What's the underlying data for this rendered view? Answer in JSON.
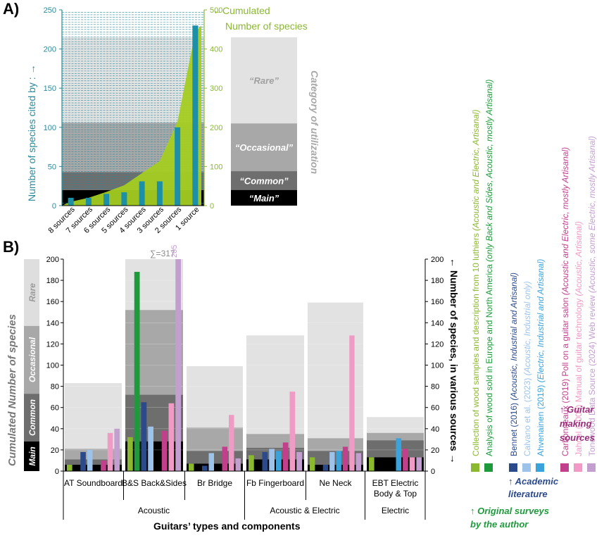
{
  "colors": {
    "teal": "#2a8a9a",
    "tealBar": "#1d8fa6",
    "green": "#8ab82e",
    "greenArea": "#a4cc22",
    "darkGreen": "#1e9a3c",
    "navy": "#2b4a8c",
    "lightBlue": "#9ec3ea",
    "blue": "#3aa3dc",
    "magenta": "#c23f8c",
    "pink": "#f09ac6",
    "lavender": "#c39fd0",
    "purple": "#9a2e7a",
    "rare": "#e2e2e2",
    "occasional": "#a8a8a8",
    "common": "#6e6e6e",
    "main": "#000000"
  },
  "panelA": {
    "label": "A)",
    "leftAxisTitle": "Number of species cited by : →",
    "leftAxisArrow": "←",
    "rightAxisTitleLine1": "←Cumulated",
    "rightAxisTitleLine2": "Number of species",
    "categoryTitle": "Category of utilization",
    "categories": [
      "“Rare”",
      "“Occasional”",
      "“Common”",
      "“Main”"
    ]
  },
  "panelB": {
    "label": "B)",
    "leftAxisTitle": "Cumulated Number of species",
    "rightAxisTitle": "← Number of species, in various sources →",
    "xAxisTitle": "Guitars’ types and components",
    "sumLabel": "∑=317",
    "overflowLabel": "205",
    "categoryLabels": [
      "Rare",
      "Occasional",
      "Common",
      "Main"
    ],
    "componentLabels": [
      "AT Soundboard",
      "B&S Back&Sides",
      "Br Bridge",
      "Fb Fingerboard",
      "Ne Neck",
      "EBT Electric\nBody & Top"
    ],
    "groupLabels": [
      "Acoustic",
      "Acoustic & Electric",
      "Electric"
    ]
  },
  "legend": {
    "original": {
      "heading": "↑ Original surveys by the author",
      "items": [
        {
          "main": "Collection of wood samples and description from 10 luthiers ",
          "italic": "(Acoustic and Electric, Artisanal)",
          "color": "#8ab82e"
        },
        {
          "main": "Analysis of wood sold in Europe and North America ",
          "italic": "(only Back and Sides, Acoustic, mostly Artisanal)",
          "color": "#1e9a3c"
        }
      ]
    },
    "academic": {
      "heading": "↑ Academic literature",
      "items": [
        {
          "main": "Bennet (2016) ",
          "italic": "(Acoustic, Industrial and Artisanal)",
          "color": "#2b4a8c"
        },
        {
          "main": "Calvano et al. (2023) ",
          "italic": "(Acoustic, Industrial only)",
          "color": "#9ec3ea"
        },
        {
          "main": "Ahvenainen (2019) ",
          "italic": "(Electric, Industrial and Artisanal)",
          "color": "#3aa3dc"
        }
      ]
    },
    "guitar": {
      "heading": "↑ Guitar making sources",
      "items": [
        {
          "main": "Carbonneaux (2019) Poll on a guitar salon ",
          "italic": "(Acoustic and Electric, mostly Artisanal)",
          "color": "#c23f8c"
        },
        {
          "main": "Jahnel (2000) Manual of guitar technology ",
          "italic": "(Acoustic, Artisanal)",
          "color": "#f09ac6"
        },
        {
          "main": "Tonewood Data Source (2024) Web review ",
          "italic": "(Acoustic, some Electric, mostly Artisanal)",
          "color": "#c39fd0"
        }
      ]
    }
  },
  "chart_data": [
    {
      "type": "bar",
      "id": "A",
      "categories": [
        "8 sources",
        "7 sources",
        "6 sources",
        "5 sources",
        "4 sources",
        "3 sources",
        "2 sources",
        "1 source"
      ],
      "values": [
        10,
        10,
        15,
        17,
        31,
        31,
        100,
        230
      ],
      "ylim": [
        0,
        250
      ],
      "yticks": [
        0,
        50,
        100,
        150,
        200,
        250
      ],
      "y2ticks": [
        0,
        100,
        200,
        300,
        400,
        500
      ],
      "cumulative": [
        10,
        20,
        35,
        52,
        83,
        114,
        214,
        444
      ],
      "y2lim": [
        0,
        500
      ],
      "categoryBands": [
        {
          "name": "Main",
          "from": 0,
          "to": 20
        },
        {
          "name": "Common",
          "from": 20,
          "to": 43
        },
        {
          "name": "Occasional",
          "from": 43,
          "to": 106
        },
        {
          "name": "Rare",
          "from": 106,
          "to": 215
        }
      ]
    },
    {
      "type": "bar",
      "id": "B",
      "categories": [
        "AT",
        "B&S",
        "Br",
        "Fb",
        "Ne",
        "EBT"
      ],
      "ylim": [
        0,
        200
      ],
      "yticks": [
        0,
        20,
        40,
        60,
        80,
        100,
        120,
        140,
        160,
        180,
        200
      ],
      "stackedTotals": [
        {
          "main": 6,
          "common": 11,
          "occasional": 21,
          "rare": 83
        },
        {
          "main": 28,
          "common": 72,
          "occasional": 152,
          "rare": 200
        },
        {
          "main": 7,
          "common": 19,
          "occasional": 41,
          "rare": 99
        },
        {
          "main": 11,
          "common": 22,
          "occasional": 35,
          "rare": 128
        },
        {
          "main": 6,
          "common": 19,
          "occasional": 31,
          "rare": 159
        },
        {
          "main": 13,
          "common": 29,
          "occasional": 36,
          "rare": 51
        }
      ],
      "series": [
        {
          "name": "Collection of wood samples and description from 10 luthiers",
          "values": [
            6,
            32,
            7,
            15,
            13,
            13
          ]
        },
        {
          "name": "Analysis of wood sold in Europe and North America",
          "values": [
            null,
            188,
            null,
            null,
            null,
            null
          ]
        },
        {
          "name": "Bennet (2016)",
          "values": [
            18,
            65,
            5,
            18,
            6,
            null
          ]
        },
        {
          "name": "Calvano et al. (2023)",
          "values": [
            20,
            42,
            17,
            21,
            18,
            null
          ]
        },
        {
          "name": "Ahvenainen (2019)",
          "values": [
            null,
            null,
            null,
            19,
            19,
            31
          ]
        },
        {
          "name": "Carbonneaux (2019)",
          "values": [
            10,
            38,
            23,
            27,
            23,
            21
          ]
        },
        {
          "name": "Jahnel (2000)",
          "values": [
            36,
            64,
            53,
            75,
            128,
            13
          ]
        },
        {
          "name": "Tonewood Data Source (2024)",
          "values": [
            40,
            205,
            12,
            18,
            17,
            13
          ]
        }
      ]
    }
  ]
}
